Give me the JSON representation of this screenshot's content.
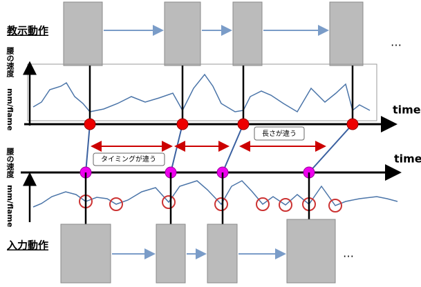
{
  "teaching": {
    "label": "教示動作",
    "ellipsis": "…"
  },
  "input": {
    "label": "入力動作",
    "ellipsis": "…"
  },
  "upper_axis": {
    "y_label": "腰の速度",
    "y_unit": "mm/flame",
    "x_label": "time"
  },
  "lower_axis": {
    "y_label": "腰の速度",
    "y_unit": "mm/flame",
    "x_label": "time"
  },
  "callouts": {
    "length": "長さが違う",
    "timing": "タイミングが違う"
  }
}
